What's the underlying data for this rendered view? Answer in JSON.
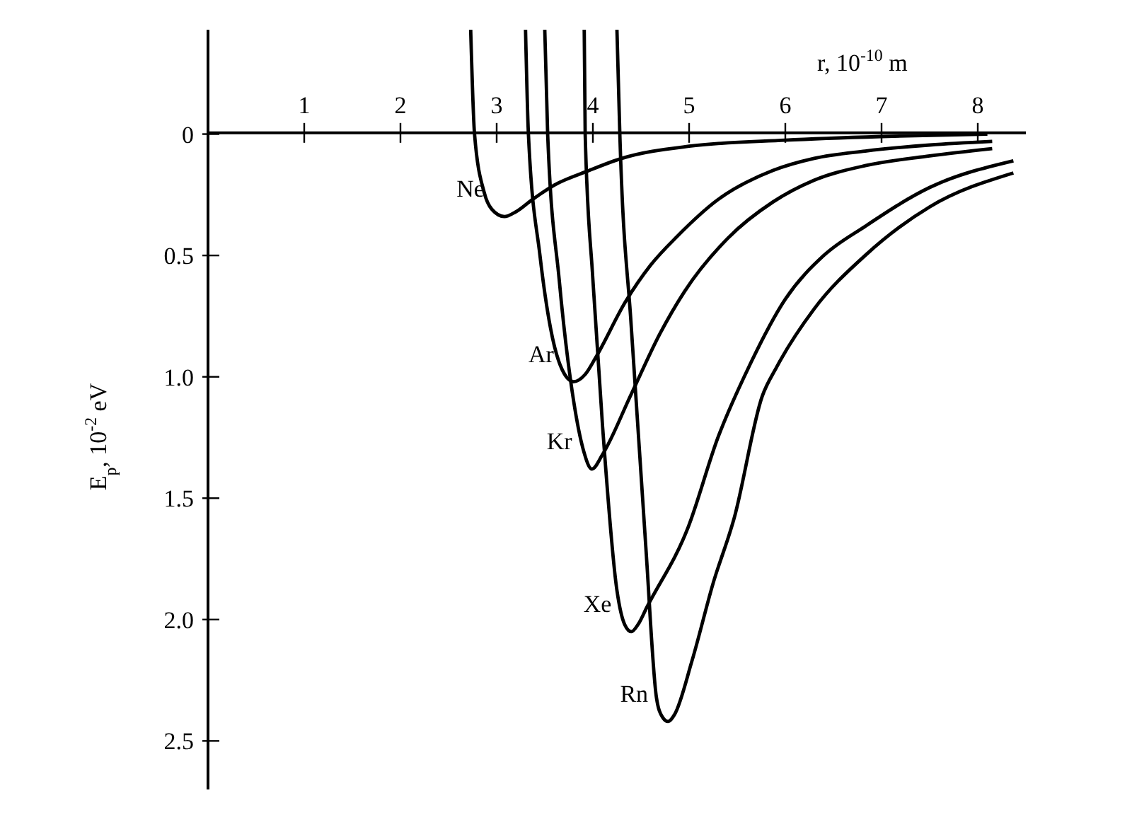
{
  "chart_data": {
    "type": "line",
    "xlabel": "r, 10$^{-10}$ m",
    "ylabel": "E$_{p}$, 10$^{-2}$ eV",
    "xlim": [
      0,
      8.5
    ],
    "ylim": [
      2.7,
      -0.43
    ],
    "xticks": [
      1,
      2,
      3,
      4,
      5,
      6,
      7,
      8
    ],
    "yticks": [
      0,
      0.5,
      {
        "value": 1,
        "label": "1.0"
      },
      1.5,
      {
        "value": 2,
        "label": "2.0"
      },
      2.5
    ],
    "grid": false,
    "legend": false,
    "marker": "none",
    "line_style": "solid",
    "series": [
      {
        "name": "Ne",
        "color": "#000000",
        "x": [
          2.73,
          2.77,
          2.87,
          2.95,
          3.08,
          3.2,
          3.37,
          3.6,
          3.96,
          4.3,
          5,
          6,
          7,
          8.1
        ],
        "values": [
          -0.43,
          0,
          0.24,
          0.31,
          0.34,
          0.32,
          0.27,
          0.21,
          0.15,
          0.1,
          0.05,
          0.025,
          0.01,
          0.0
        ]
      },
      {
        "name": "Ar",
        "color": "#000000",
        "x": [
          3.3,
          3.33,
          3.45,
          3.56,
          3.68,
          3.8,
          3.92,
          4.03,
          4.34,
          4.6,
          4.88,
          5.3,
          5.87,
          6.3,
          6.83,
          7.5,
          8.15
        ],
        "values": [
          -0.43,
          0,
          0.5,
          0.8,
          0.97,
          1.02,
          0.99,
          0.92,
          0.69,
          0.54,
          0.42,
          0.27,
          0.15,
          0.1,
          0.07,
          0.045,
          0.03
        ]
      },
      {
        "name": "Kr",
        "color": "#000000",
        "x": [
          3.5,
          3.53,
          3.65,
          3.8,
          3.9,
          3.99,
          4.1,
          4.4,
          4.7,
          4.95,
          5.4,
          5.87,
          6.3,
          6.83,
          7.5,
          8.15
        ],
        "values": [
          -0.43,
          0,
          0.6,
          1.1,
          1.3,
          1.38,
          1.32,
          1.07,
          0.82,
          0.65,
          0.43,
          0.28,
          0.19,
          0.13,
          0.09,
          0.06
        ]
      },
      {
        "name": "Xe",
        "color": "#000000",
        "x": [
          3.91,
          3.92,
          4.0,
          4.1,
          4.25,
          4.33,
          4.4,
          4.47,
          4.56,
          4.99,
          5.3,
          5.62,
          6.0,
          6.4,
          6.83,
          7.5,
          8.37
        ],
        "values": [
          -0.43,
          0,
          0.6,
          1.2,
          1.88,
          2.02,
          2.05,
          2.02,
          1.95,
          1.62,
          1.25,
          0.96,
          0.68,
          0.5,
          0.38,
          0.22,
          0.11
        ]
      },
      {
        "name": "Rn",
        "color": "#000000",
        "x": [
          4.25,
          4.28,
          4.4,
          4.55,
          4.66,
          4.72,
          4.78,
          4.85,
          5.03,
          5.25,
          5.47,
          5.76,
          5.91,
          6.3,
          6.83,
          7.5,
          8.37
        ],
        "values": [
          -0.43,
          0,
          0.8,
          1.7,
          2.32,
          2.4,
          2.42,
          2.39,
          2.17,
          1.85,
          1.58,
          1.08,
          0.96,
          0.72,
          0.5,
          0.3,
          0.16
        ]
      }
    ]
  }
}
